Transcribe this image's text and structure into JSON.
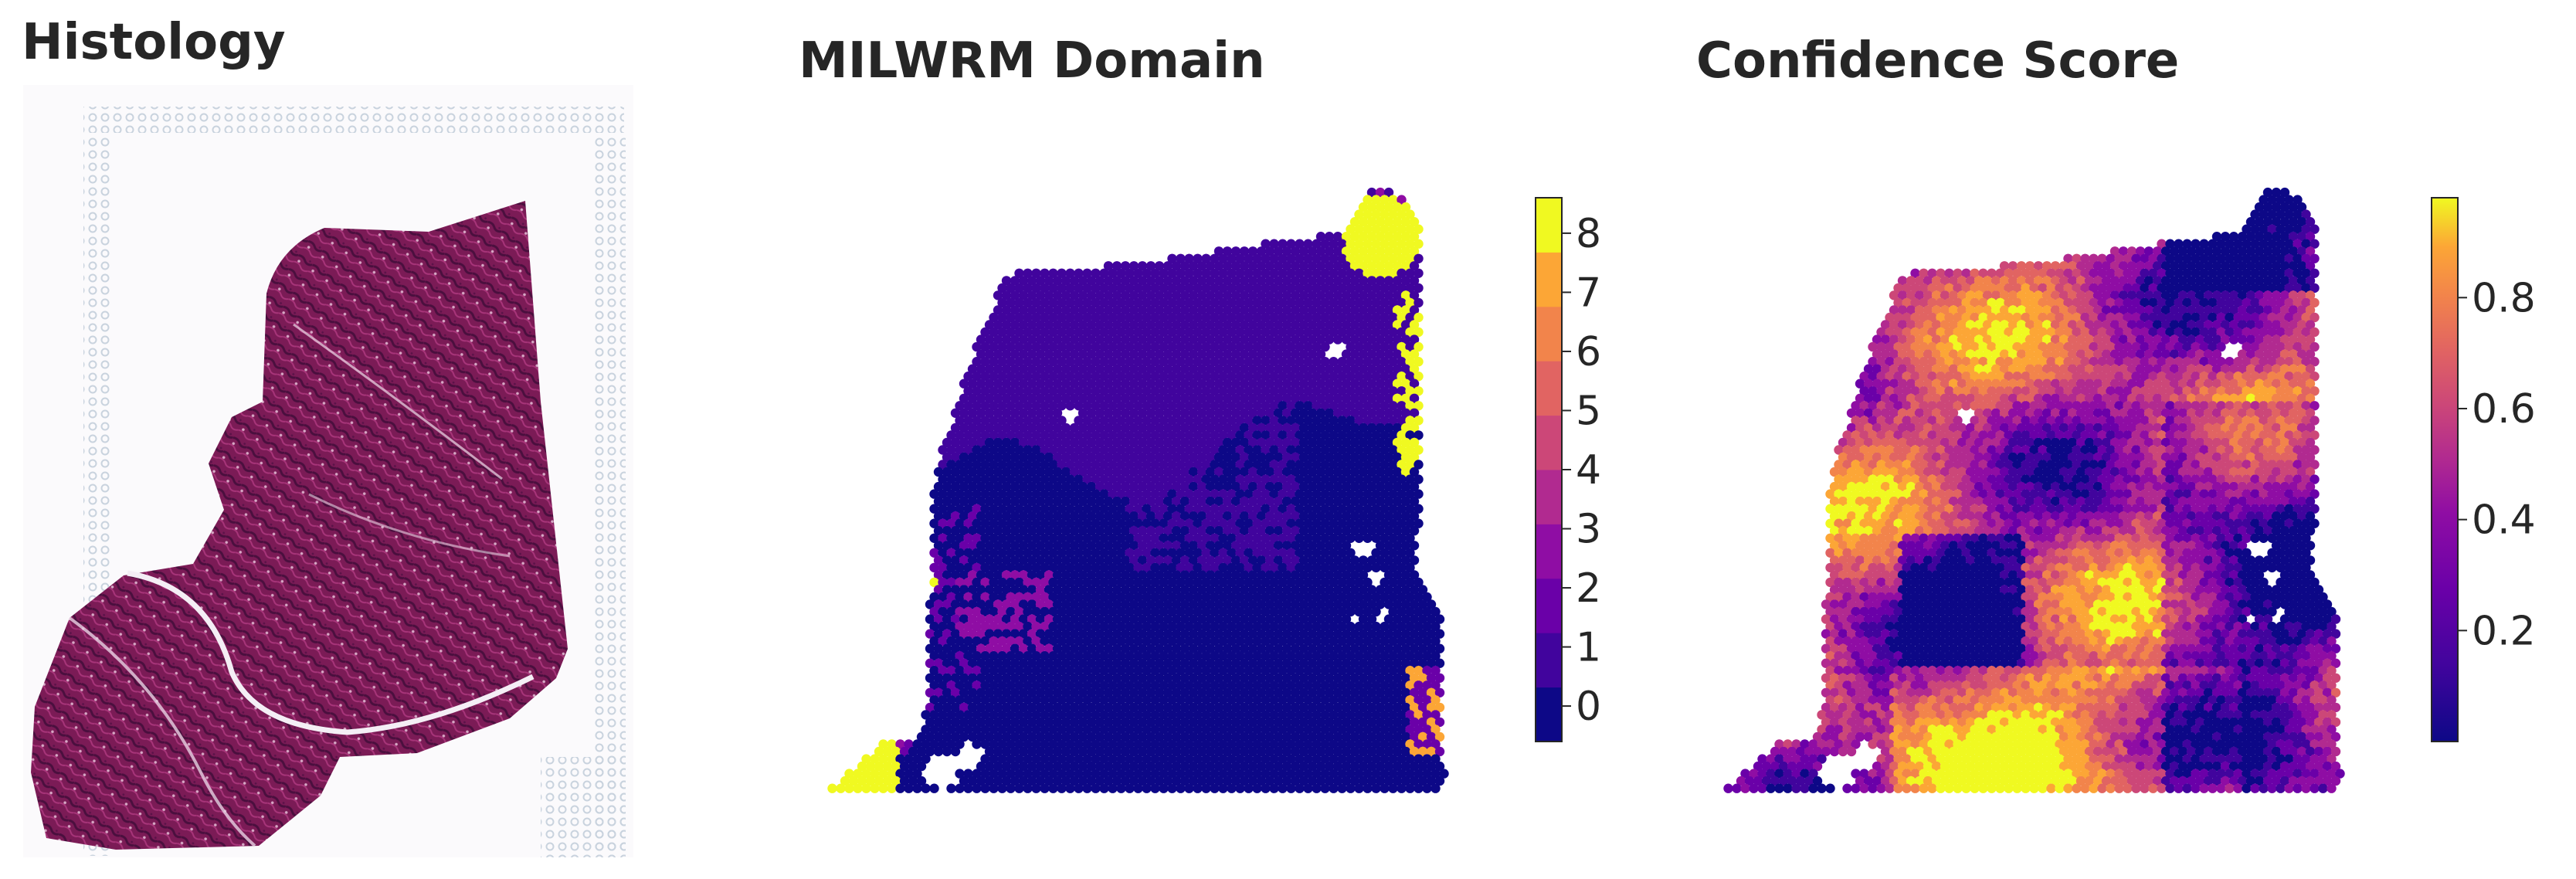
{
  "panels": [
    {
      "title": "Histology"
    },
    {
      "title": "MILWRM Domain"
    },
    {
      "title": "Confidence Score"
    }
  ],
  "chart_data": [
    {
      "type": "image",
      "title": "Histology"
    },
    {
      "type": "heatmap",
      "title": "MILWRM Domain",
      "colorbar": {
        "kind": "categorical",
        "ticks": [
          "0",
          "1",
          "2",
          "3",
          "4",
          "5",
          "6",
          "7",
          "8"
        ],
        "colors": [
          "#0d0887",
          "#41049d",
          "#6a00a8",
          "#8f0da4",
          "#b12a90",
          "#cc4778",
          "#e16462",
          "#f2844b",
          "#fca636",
          "#f0f921"
        ]
      },
      "dominant_domains": [
        "0",
        "1",
        "2",
        "8"
      ]
    },
    {
      "type": "heatmap",
      "title": "Confidence Score",
      "colorbar": {
        "kind": "continuous",
        "range": [
          0.0,
          0.98
        ],
        "ticks": [
          "0.2",
          "0.4",
          "0.6",
          "0.8"
        ],
        "tick_values": [
          0.2,
          0.4,
          0.6,
          0.8
        ],
        "colormap": "plasma"
      }
    }
  ]
}
